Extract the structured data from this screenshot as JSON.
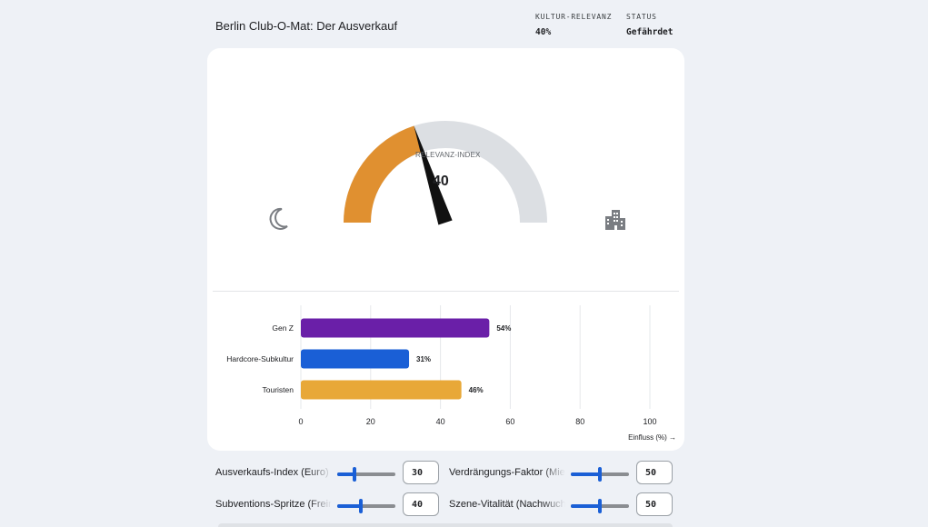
{
  "header": {
    "title": "Berlin Club-O-Mat: Der Ausverkauf",
    "relevance_label": "KULTUR-RELEVANZ",
    "relevance_value": "40%",
    "status_label": "STATUS",
    "status_value": "Gefährdet"
  },
  "gauge": {
    "label": "RELEVANZ-INDEX",
    "value": 40,
    "value_text": "40",
    "min": 0,
    "max": 100,
    "fill_color": "#e09030",
    "track_color": "#dcdfe3",
    "needle_color": "#111111",
    "left_icon": "moon-icon",
    "right_icon": "city-buildings-icon"
  },
  "chart_data": {
    "type": "bar",
    "orientation": "horizontal",
    "categories": [
      "Gen Z",
      "Hardcore-Subkultur",
      "Touristen"
    ],
    "values": [
      54,
      31,
      46
    ],
    "value_labels": [
      "54%",
      "31%",
      "46%"
    ],
    "colors": [
      "#6a1fa8",
      "#1a5fd6",
      "#e8a838"
    ],
    "xlim": [
      0,
      100
    ],
    "xticks": [
      "0",
      "20",
      "40",
      "60",
      "80",
      "100"
    ],
    "xlabel": "Einfluss (%) →",
    "grid": true
  },
  "controls": [
    {
      "label": "Ausverkaufs-Index (Euro)",
      "value": 30,
      "value_text": "30"
    },
    {
      "label": "Verdrängungs-Faktor (Mieten)",
      "value": 50,
      "value_text": "50"
    },
    {
      "label": "Subventions-Spritze (Freiraum)",
      "value": 40,
      "value_text": "40"
    },
    {
      "label": "Szene-Vitalität (Nachwuchs)",
      "value": 50,
      "value_text": "50"
    }
  ]
}
